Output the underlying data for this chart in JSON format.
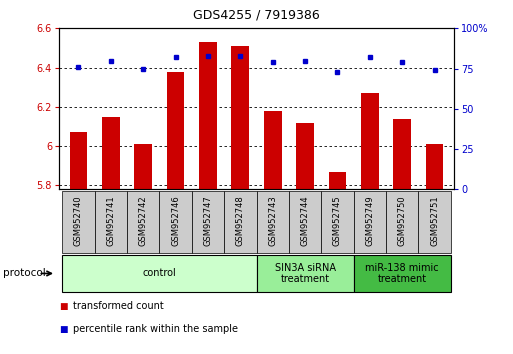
{
  "title": "GDS4255 / 7919386",
  "samples": [
    "GSM952740",
    "GSM952741",
    "GSM952742",
    "GSM952746",
    "GSM952747",
    "GSM952748",
    "GSM952743",
    "GSM952744",
    "GSM952745",
    "GSM952749",
    "GSM952750",
    "GSM952751"
  ],
  "bar_values": [
    6.07,
    6.15,
    6.01,
    6.38,
    6.53,
    6.51,
    6.18,
    6.12,
    5.87,
    6.27,
    6.14,
    6.01
  ],
  "dot_values": [
    76,
    80,
    75,
    82,
    83,
    83,
    79,
    80,
    73,
    82,
    79,
    74
  ],
  "bar_color": "#cc0000",
  "dot_color": "#0000cc",
  "ylim_left": [
    5.78,
    6.6
  ],
  "ylim_right": [
    0,
    100
  ],
  "yticks_left": [
    5.8,
    6.0,
    6.2,
    6.4,
    6.6
  ],
  "yticks_right": [
    0,
    25,
    50,
    75,
    100
  ],
  "ytick_labels_left": [
    "5.8",
    "6",
    "6.2",
    "6.4",
    "6.6"
  ],
  "ytick_labels_right": [
    "0",
    "25",
    "50",
    "75",
    "100%"
  ],
  "groups": [
    {
      "label": "control",
      "start": 0,
      "end": 6,
      "color": "#ccffcc"
    },
    {
      "label": "SIN3A siRNA\ntreatment",
      "start": 6,
      "end": 9,
      "color": "#99ee99"
    },
    {
      "label": "miR-138 mimic\ntreatment",
      "start": 9,
      "end": 12,
      "color": "#44bb44"
    }
  ],
  "protocol_label": "protocol",
  "legend_items": [
    {
      "label": "transformed count",
      "color": "#cc0000"
    },
    {
      "label": "percentile rank within the sample",
      "color": "#0000cc"
    }
  ],
  "bar_width": 0.55,
  "sample_label_fontsize": 6,
  "group_label_fontsize": 7,
  "axis_fontsize": 7,
  "title_fontsize": 9
}
